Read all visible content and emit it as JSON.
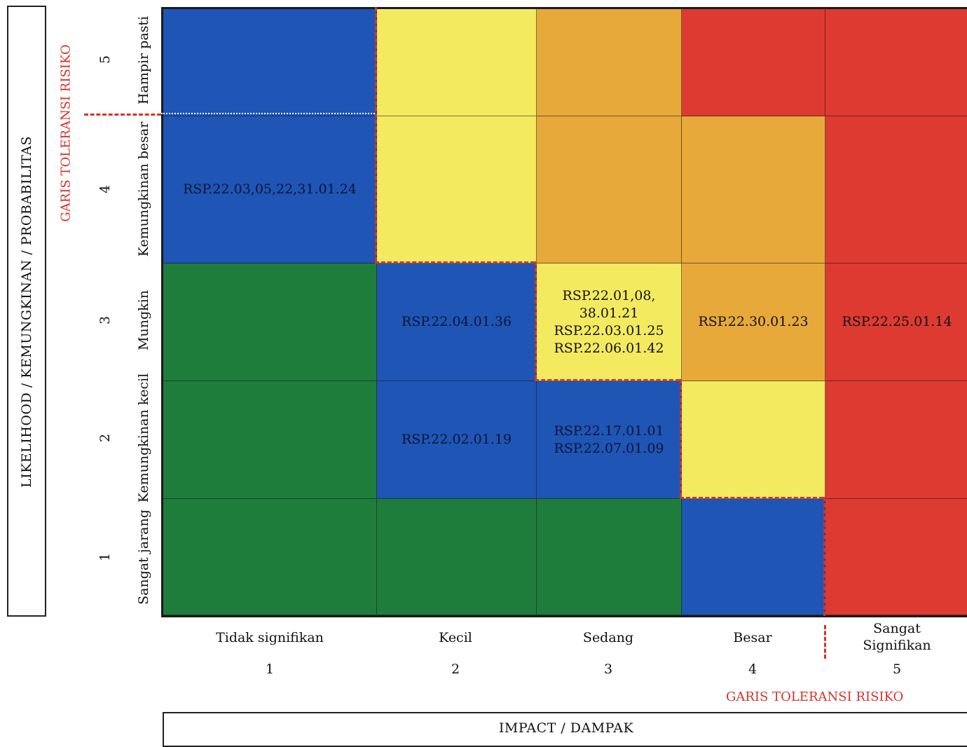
{
  "y_axis": {
    "title": "LIKELIHOOD / KEMUNGKINAN / PROBABILITAS",
    "tolerance_label": "GARIS TOLERANSI RISIKO",
    "levels": [
      {
        "num": "5",
        "name": "Hampir pasti"
      },
      {
        "num": "4",
        "name": "Kemungkinan besar"
      },
      {
        "num": "3",
        "name": "Mungkin"
      },
      {
        "num": "2",
        "name": "Kemungkinan kecil"
      },
      {
        "num": "1",
        "name": "Sangat jarang"
      }
    ]
  },
  "x_axis": {
    "title": "IMPACT / DAMPAK",
    "tolerance_label": "GARIS TOLERANSI RISIKO",
    "levels": [
      {
        "num": "1",
        "name": "Tidak signifikan"
      },
      {
        "num": "2",
        "name": "Kecil"
      },
      {
        "num": "3",
        "name": "Sedang"
      },
      {
        "num": "4",
        "name": "Besar"
      },
      {
        "num": "5",
        "name": "Sangat\nSignifikan"
      }
    ]
  },
  "colors": {
    "blue": "#1f55b5",
    "green": "#1f7d3c",
    "yellow": "#f4ea60",
    "orange": "#e6a93a",
    "red": "#dd3a31",
    "tolerance_line": "#d4342c"
  },
  "cells": {
    "r5c1": "",
    "r5c2": "",
    "r5c3": "",
    "r5c4": "",
    "r5c5": "",
    "r4c1": "RSP.22.03,05,22,31.01.24",
    "r4c2": "",
    "r4c3": "",
    "r4c4": "",
    "r4c5": "",
    "r3c1": "",
    "r3c2": "RSP.22.04.01.36",
    "r3c3": "RSP.22.01,08,\n38.01.21\nRSP.22.03.01.25\nRSP.22.06.01.42",
    "r3c4": "RSP.22.30.01.23",
    "r3c5": "RSP.22.25.01.14",
    "r2c1": "",
    "r2c2": "RSP.22.02.01.19",
    "r2c3": "RSP.22.17.01.01\nRSP.22.07.01.09",
    "r2c4": "",
    "r2c5": "",
    "r1c1": "",
    "r1c2": "",
    "r1c3": "",
    "r1c4": "",
    "r1c5": ""
  }
}
